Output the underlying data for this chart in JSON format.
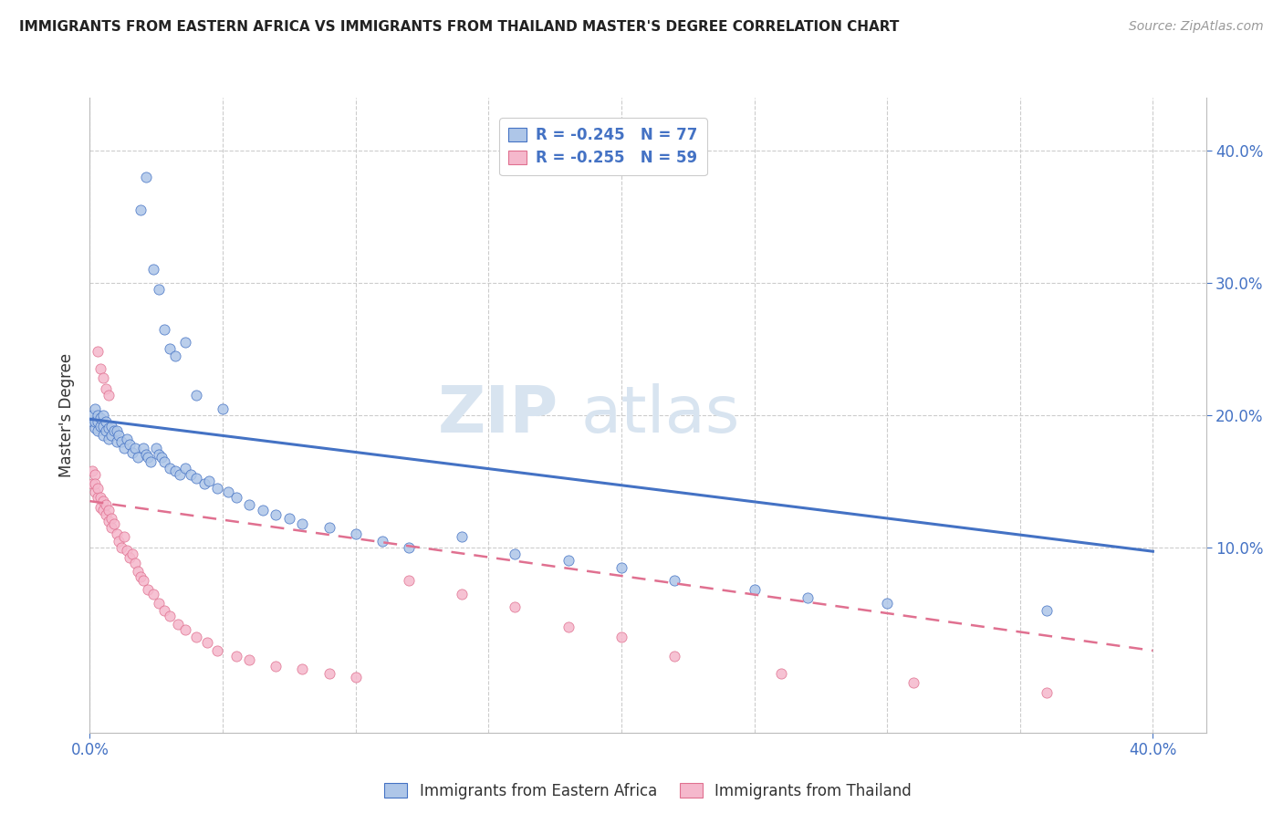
{
  "title": "IMMIGRANTS FROM EASTERN AFRICA VS IMMIGRANTS FROM THAILAND MASTER'S DEGREE CORRELATION CHART",
  "source": "Source: ZipAtlas.com",
  "ylabel": "Master's Degree",
  "xlim": [
    0.0,
    0.42
  ],
  "ylim": [
    -0.04,
    0.44
  ],
  "legend_r1": "R = -0.245",
  "legend_n1": "N = 77",
  "legend_r2": "R = -0.255",
  "legend_n2": "N = 59",
  "color_blue_fill": "#aec6e8",
  "color_blue_edge": "#4472C4",
  "color_pink_fill": "#f5b8cc",
  "color_pink_edge": "#E07090",
  "color_line_blue": "#4472C4",
  "color_line_pink": "#E07090",
  "watermark_zip": "ZIP",
  "watermark_atlas": "atlas",
  "blue_line_x": [
    0.0,
    0.4
  ],
  "blue_line_y": [
    0.197,
    0.097
  ],
  "pink_line_x": [
    0.0,
    0.4
  ],
  "pink_line_y": [
    0.135,
    0.022
  ],
  "legend_label_blue": "Immigrants from Eastern Africa",
  "legend_label_pink": "Immigrants from Thailand",
  "grid_color": "#cccccc",
  "background_color": "#ffffff",
  "blue_scatter_x": [
    0.001,
    0.001,
    0.002,
    0.002,
    0.002,
    0.003,
    0.003,
    0.003,
    0.004,
    0.004,
    0.005,
    0.005,
    0.005,
    0.006,
    0.006,
    0.007,
    0.007,
    0.008,
    0.008,
    0.009,
    0.01,
    0.01,
    0.011,
    0.012,
    0.013,
    0.014,
    0.015,
    0.016,
    0.017,
    0.018,
    0.02,
    0.021,
    0.022,
    0.023,
    0.025,
    0.026,
    0.027,
    0.028,
    0.03,
    0.032,
    0.034,
    0.036,
    0.038,
    0.04,
    0.043,
    0.045,
    0.048,
    0.052,
    0.055,
    0.06,
    0.065,
    0.07,
    0.075,
    0.08,
    0.09,
    0.1,
    0.11,
    0.12,
    0.14,
    0.16,
    0.18,
    0.2,
    0.22,
    0.25,
    0.27,
    0.3,
    0.36,
    0.019,
    0.021,
    0.024,
    0.026,
    0.028,
    0.03,
    0.032,
    0.036,
    0.04,
    0.05
  ],
  "blue_scatter_y": [
    0.195,
    0.2,
    0.19,
    0.195,
    0.205,
    0.188,
    0.195,
    0.2,
    0.192,
    0.198,
    0.185,
    0.192,
    0.2,
    0.188,
    0.195,
    0.182,
    0.19,
    0.185,
    0.192,
    0.188,
    0.18,
    0.188,
    0.185,
    0.18,
    0.175,
    0.182,
    0.178,
    0.172,
    0.175,
    0.168,
    0.175,
    0.17,
    0.168,
    0.165,
    0.175,
    0.17,
    0.168,
    0.165,
    0.16,
    0.158,
    0.155,
    0.16,
    0.155,
    0.152,
    0.148,
    0.15,
    0.145,
    0.142,
    0.138,
    0.132,
    0.128,
    0.125,
    0.122,
    0.118,
    0.115,
    0.11,
    0.105,
    0.1,
    0.108,
    0.095,
    0.09,
    0.085,
    0.075,
    0.068,
    0.062,
    0.058,
    0.052,
    0.355,
    0.38,
    0.31,
    0.295,
    0.265,
    0.25,
    0.245,
    0.255,
    0.215,
    0.205
  ],
  "pink_scatter_x": [
    0.001,
    0.001,
    0.002,
    0.002,
    0.002,
    0.003,
    0.003,
    0.004,
    0.004,
    0.005,
    0.005,
    0.006,
    0.006,
    0.007,
    0.007,
    0.008,
    0.008,
    0.009,
    0.01,
    0.011,
    0.012,
    0.013,
    0.014,
    0.015,
    0.016,
    0.017,
    0.018,
    0.019,
    0.02,
    0.022,
    0.024,
    0.026,
    0.028,
    0.03,
    0.033,
    0.036,
    0.04,
    0.044,
    0.048,
    0.055,
    0.06,
    0.07,
    0.08,
    0.09,
    0.1,
    0.12,
    0.14,
    0.16,
    0.18,
    0.2,
    0.22,
    0.26,
    0.31,
    0.36,
    0.003,
    0.004,
    0.005,
    0.006,
    0.007
  ],
  "pink_scatter_y": [
    0.158,
    0.148,
    0.155,
    0.142,
    0.148,
    0.138,
    0.145,
    0.13,
    0.138,
    0.135,
    0.128,
    0.125,
    0.132,
    0.12,
    0.128,
    0.122,
    0.115,
    0.118,
    0.11,
    0.105,
    0.1,
    0.108,
    0.098,
    0.092,
    0.095,
    0.088,
    0.082,
    0.078,
    0.075,
    0.068,
    0.065,
    0.058,
    0.052,
    0.048,
    0.042,
    0.038,
    0.032,
    0.028,
    0.022,
    0.018,
    0.015,
    0.01,
    0.008,
    0.005,
    0.002,
    0.075,
    0.065,
    0.055,
    0.04,
    0.032,
    0.018,
    0.005,
    -0.002,
    -0.01,
    0.248,
    0.235,
    0.228,
    0.22,
    0.215
  ]
}
